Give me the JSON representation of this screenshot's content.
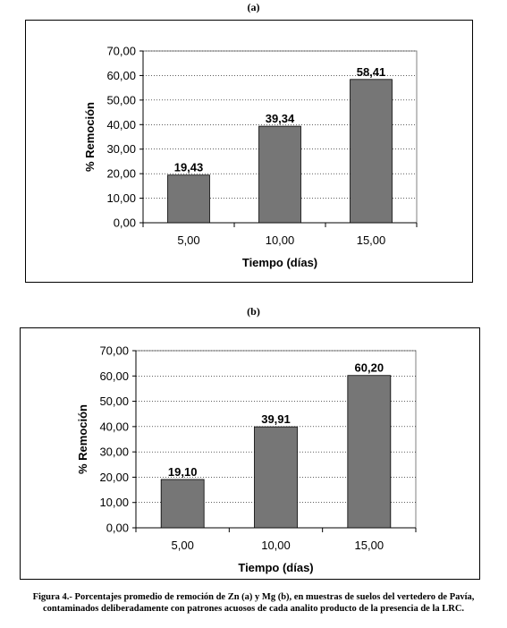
{
  "panels": [
    {
      "label": "(a)"
    },
    {
      "label": "(b)"
    }
  ],
  "caption": {
    "line1": "Figura 4.- Porcentajes promedio de remoción de Zn (a) y Mg (b), en muestras de suelos del vertedero de Pavía,",
    "line2": "contaminados deliberadamente con patrones acuosos de cada analito producto de la presencia de la LRC."
  },
  "colors": {
    "bar": "#767676",
    "bar_stroke": "#000000",
    "grid": "#000000"
  },
  "chart_data": [
    {
      "type": "bar",
      "categories": [
        "5,00",
        "10,00",
        "15,00"
      ],
      "values": [
        19.43,
        39.34,
        58.41
      ],
      "data_labels": [
        "19,43",
        "39,34",
        "58,41"
      ],
      "title": "",
      "xlabel": "Tiempo (días)",
      "ylabel": "% Remoción",
      "ylim": [
        0,
        70
      ],
      "yticks": [
        "0,00",
        "10,00",
        "20,00",
        "30,00",
        "40,00",
        "50,00",
        "60,00",
        "70,00"
      ],
      "grid": "dotted horizontal"
    },
    {
      "type": "bar",
      "categories": [
        "5,00",
        "10,00",
        "15,00"
      ],
      "values": [
        19.1,
        39.91,
        60.2
      ],
      "data_labels": [
        "19,10",
        "39,91",
        "60,20"
      ],
      "title": "",
      "xlabel": "Tiempo (días)",
      "ylabel": "% Remoción",
      "ylim": [
        0,
        70
      ],
      "yticks": [
        "0,00",
        "10,00",
        "20,00",
        "30,00",
        "40,00",
        "50,00",
        "60,00",
        "70,00"
      ],
      "grid": "dotted horizontal"
    }
  ]
}
